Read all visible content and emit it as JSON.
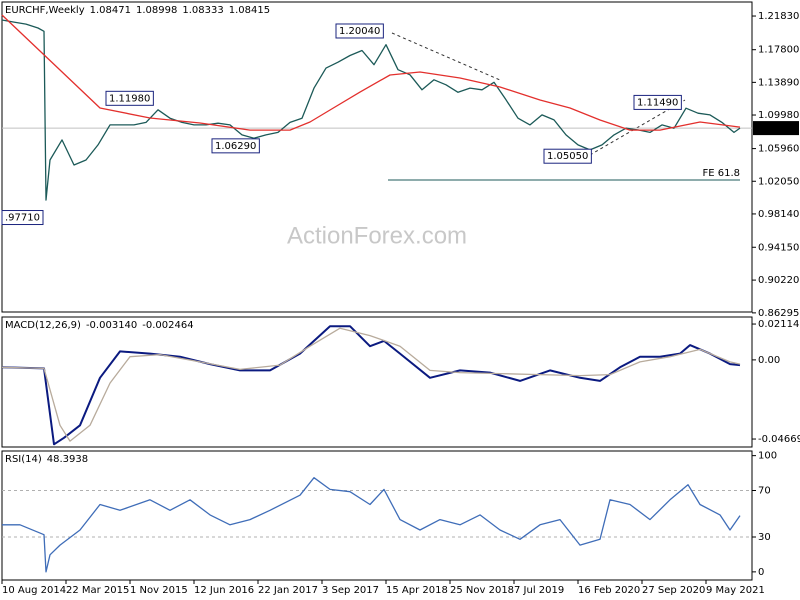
{
  "chart_data": [
    {
      "type": "line",
      "title": "EURCHF,Weekly",
      "ohlc": [
        1.08471,
        1.08998,
        1.08333,
        1.08415
      ],
      "watermark": "ActionForex.com",
      "xlim": [
        0,
        375
      ],
      "ylim": [
        0.864,
        1.2351
      ],
      "yticks": [
        {
          "value": 1.2183,
          "label": "1.21830"
        },
        {
          "value": 1.178,
          "label": "1.17800"
        },
        {
          "value": 1.1389,
          "label": "1.13890"
        },
        {
          "value": 1.0998,
          "label": "1.09980"
        },
        {
          "value": 1.0596,
          "label": "1.05960"
        },
        {
          "value": 1.0205,
          "label": "1.02050"
        },
        {
          "value": 0.9814,
          "label": "0.98140"
        },
        {
          "value": 0.9415,
          "label": "0.94150"
        },
        {
          "value": 0.9022,
          "label": "0.90220"
        },
        0.86295
      ],
      "series": [
        {
          "color": "#1c5a58",
          "x": [
            0,
            6,
            12,
            18,
            21,
            22,
            24,
            30,
            36,
            42,
            48,
            54,
            60,
            66,
            72,
            78,
            84,
            90,
            96,
            102,
            108,
            114,
            120,
            126,
            132,
            138,
            144,
            150,
            156,
            162,
            168,
            174,
            180,
            186,
            192,
            198,
            204,
            210,
            216,
            222,
            228,
            234,
            240,
            246,
            252,
            258,
            264,
            270,
            276,
            282,
            288,
            294,
            300,
            306,
            312,
            318,
            324,
            330,
            336,
            342,
            348,
            354,
            360,
            366,
            369
          ],
          "values": [
            1.2135,
            1.211,
            1.2087,
            1.204,
            1.2,
            0.998,
            1.046,
            1.07,
            1.04,
            1.046,
            1.064,
            1.088,
            1.088,
            1.088,
            1.091,
            1.106,
            1.096,
            1.091,
            1.088,
            1.088,
            1.09,
            1.088,
            1.076,
            1.072,
            1.076,
            1.079,
            1.091,
            1.096,
            1.132,
            1.156,
            1.163,
            1.171,
            1.177,
            1.16,
            1.184,
            1.154,
            1.148,
            1.13,
            1.142,
            1.136,
            1.127,
            1.132,
            1.13,
            1.139,
            1.118,
            1.096,
            1.088,
            1.1,
            1.094,
            1.076,
            1.064,
            1.058,
            1.064,
            1.076,
            1.084,
            1.082,
            1.079,
            1.088,
            1.084,
            1.108,
            1.102,
            1.1,
            1.091,
            1.079,
            1.08415
          ]
        },
        {
          "color": "#e3302d",
          "x": [
            0,
            29,
            49,
            74,
            99,
            124,
            144,
            154,
            164,
            179,
            194,
            209,
            229,
            249,
            269,
            284,
            299,
            314,
            329,
            349,
            369
          ],
          "values": [
            1.2195,
            1.1537,
            1.1082,
            1.0962,
            1.0902,
            1.0818,
            1.0818,
            1.0914,
            1.1058,
            1.1273,
            1.1477,
            1.1513,
            1.1441,
            1.1333,
            1.1178,
            1.1082,
            1.0938,
            1.0818,
            1.0818,
            1.0914,
            1.0854
          ]
        }
      ],
      "annotations": [
        {
          "label": "1.20040",
          "value": 1.2004,
          "x": 167
        },
        {
          "label": "1.11980",
          "value": 1.1198,
          "x": 52
        },
        {
          "label": "1.06290",
          "value": 1.0629,
          "x": 105
        },
        {
          "label": ".97710",
          "value": 0.9771,
          "x": 0
        },
        {
          "label": "1.05050",
          "value": 1.0505,
          "x": 271
        },
        {
          "label": "1.11490",
          "value": 1.1149,
          "x": 316
        }
      ],
      "level_line": {
        "label": "FE 61.8",
        "value": 1.022,
        "x": [
          193,
          369
        ]
      }
    },
    {
      "type": "line",
      "title": "MACD(12,26,9)",
      "readings": [
        {
          "value": -0.00314,
          "label": "-0.003140"
        },
        -0.002464
      ],
      "xlim": [
        0,
        375
      ],
      "ylim": [
        -0.0514,
        0.0253
      ],
      "yticks": [
        0.021146,
        {
          "value": 0,
          "label": "0.00"
        },
        -0.046699
      ],
      "series": [
        {
          "color": "#0b1a80",
          "x": [
            0,
            21,
            26,
            31,
            39,
            49,
            59,
            74,
            89,
            104,
            119,
            134,
            149,
            164,
            174,
            184,
            191,
            199,
            214,
            229,
            244,
            259,
            274,
            289,
            299,
            309,
            319,
            329,
            339,
            344,
            354,
            364,
            369
          ],
          "values": [
            -0.0044,
            -0.005,
            -0.0498,
            -0.046,
            -0.0386,
            -0.0106,
            0.005,
            0.0037,
            0.0019,
            -0.0025,
            -0.0062,
            -0.0062,
            0.0037,
            0.0199,
            0.0199,
            0.0081,
            0.0112,
            0.0037,
            -0.0106,
            -0.0062,
            -0.0075,
            -0.0124,
            -0.0062,
            -0.0106,
            -0.0124,
            -0.0044,
            0.0019,
            0.0019,
            0.0037,
            0.0087,
            0.0037,
            -0.0025,
            -0.0031
          ]
        },
        {
          "color": "#b8ab9c",
          "x": [
            0,
            21,
            29,
            34,
            44,
            54,
            64,
            79,
            99,
            119,
            139,
            154,
            169,
            184,
            199,
            214,
            229,
            249,
            269,
            289,
            304,
            319,
            334,
            349,
            364,
            369
          ],
          "values": [
            -0.0044,
            -0.005,
            -0.0386,
            -0.0479,
            -0.0386,
            -0.0137,
            0.0019,
            0.0031,
            -0.0012,
            -0.0056,
            -0.0031,
            0.0081,
            0.0187,
            0.0143,
            0.0081,
            -0.0062,
            -0.0075,
            -0.0081,
            -0.0087,
            -0.0093,
            -0.0087,
            -0.0012,
            0.0019,
            0.0062,
            -0.0012,
            -0.0025
          ]
        }
      ]
    },
    {
      "type": "line",
      "title": "RSI(14)",
      "readings": [
        48.3938
      ],
      "xlim": [
        0,
        375
      ],
      "ylim": [
        -7,
        104
      ],
      "yticks": [
        100,
        70,
        30,
        0
      ],
      "levels": [
        70,
        30
      ],
      "xticks": [
        {
          "value": 0,
          "label": "10 Aug 2014"
        },
        {
          "value": 32,
          "label": "22 Mar 2015"
        },
        {
          "value": 64,
          "label": "1 Nov 2015"
        },
        {
          "value": 96,
          "label": "12 Jun 2016"
        },
        {
          "value": 128,
          "label": "22 Jan 2017"
        },
        {
          "value": 160,
          "label": "3 Sep 2017"
        },
        {
          "value": 192,
          "label": "15 Apr 2018"
        },
        {
          "value": 224,
          "label": "25 Nov 2018"
        },
        {
          "value": 256,
          "label": "7 Jul 2019"
        },
        {
          "value": 288,
          "label": "16 Feb 2020"
        },
        {
          "value": 320,
          "label": "27 Sep 2020"
        },
        {
          "value": 352,
          "label": "9 May 2021"
        }
      ],
      "series": [
        {
          "color": "#3f6db8",
          "x": [
            0,
            9,
            21,
            22,
            24,
            29,
            39,
            49,
            59,
            74,
            84,
            94,
            104,
            114,
            124,
            134,
            149,
            156,
            164,
            174,
            184,
            191,
            199,
            209,
            219,
            229,
            239,
            249,
            259,
            269,
            279,
            289,
            299,
            304,
            314,
            324,
            334,
            343,
            349,
            359,
            364,
            369
          ],
          "values": [
            40.5,
            40.5,
            32,
            0,
            14.7,
            23,
            36,
            58,
            53,
            62,
            53,
            62,
            49,
            40.5,
            45,
            53,
            66,
            81,
            71,
            69,
            58,
            71,
            45,
            36,
            45,
            40.5,
            49,
            36,
            28,
            40.5,
            45,
            23,
            28,
            62,
            58,
            45,
            62,
            75,
            58,
            49,
            36,
            48.4
          ]
        }
      ]
    }
  ]
}
